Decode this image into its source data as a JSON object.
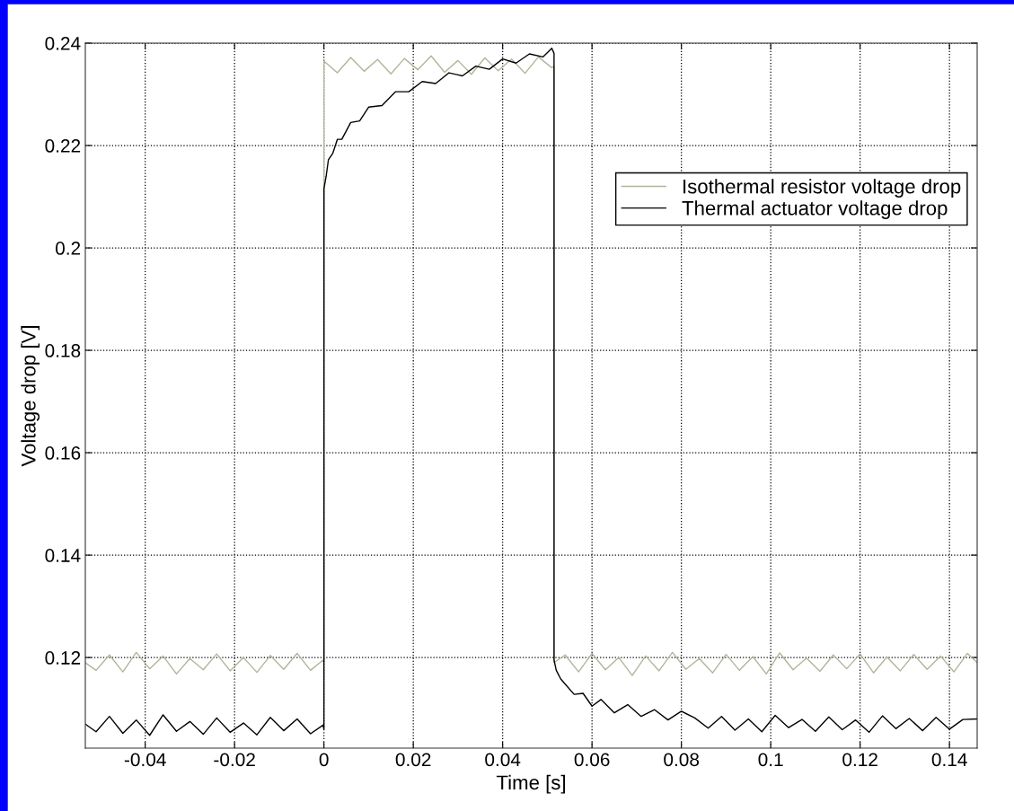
{
  "chart_data": {
    "type": "line",
    "xlabel": "Time [s]",
    "ylabel": "Voltage drop [V]",
    "xlim": [
      -0.0534,
      0.1462
    ],
    "ylim": [
      0.1023,
      0.24
    ],
    "xticks": [
      -0.04,
      -0.02,
      0,
      0.02,
      0.04,
      0.06,
      0.08,
      0.1,
      0.12,
      0.14
    ],
    "yticks": [
      0.12,
      0.14,
      0.16,
      0.18,
      0.2,
      0.22,
      0.24
    ],
    "grid": true,
    "legend": "top right",
    "line_style": "solid",
    "marker": "none",
    "series": [
      {
        "name": "Isothermal resistor voltage drop",
        "color": "#b1b59a",
        "x": [
          -0.0534,
          -0.051,
          -0.048,
          -0.045,
          -0.042,
          -0.039,
          -0.036,
          -0.033,
          -0.03,
          -0.027,
          -0.024,
          -0.021,
          -0.018,
          -0.015,
          -0.012,
          -0.009,
          -0.006,
          -0.003,
          -0.0002,
          0,
          0,
          0.003,
          0.006,
          0.009,
          0.012,
          0.015,
          0.018,
          0.021,
          0.024,
          0.027,
          0.03,
          0.033,
          0.036,
          0.039,
          0.042,
          0.045,
          0.048,
          0.051,
          0.0515,
          0.0515,
          0.054,
          0.057,
          0.06,
          0.063,
          0.066,
          0.069,
          0.072,
          0.075,
          0.078,
          0.081,
          0.084,
          0.087,
          0.09,
          0.093,
          0.096,
          0.099,
          0.102,
          0.105,
          0.108,
          0.111,
          0.114,
          0.117,
          0.12,
          0.123,
          0.126,
          0.129,
          0.132,
          0.135,
          0.138,
          0.141,
          0.144,
          0.1462
        ],
        "values": [
          0.119,
          0.1175,
          0.1205,
          0.1172,
          0.121,
          0.1178,
          0.1203,
          0.1168,
          0.1198,
          0.1176,
          0.1207,
          0.1174,
          0.12,
          0.1171,
          0.1204,
          0.1177,
          0.1208,
          0.1175,
          0.1195,
          0.119,
          0.2365,
          0.2342,
          0.2372,
          0.2345,
          0.2368,
          0.234,
          0.237,
          0.2348,
          0.2375,
          0.2343,
          0.2366,
          0.2339,
          0.2371,
          0.2346,
          0.2369,
          0.2341,
          0.2373,
          0.2352,
          0.2355,
          0.119,
          0.1205,
          0.1172,
          0.1208,
          0.1176,
          0.12,
          0.1165,
          0.1203,
          0.1174,
          0.121,
          0.1177,
          0.1198,
          0.117,
          0.1206,
          0.1175,
          0.1202,
          0.1168,
          0.1209,
          0.1176,
          0.1199,
          0.1173,
          0.1205,
          0.1178,
          0.1207,
          0.117,
          0.1201,
          0.1174,
          0.1206,
          0.1177,
          0.1203,
          0.1172,
          0.1208,
          0.119
        ]
      },
      {
        "name": "Thermal actuator voltage drop",
        "color": "#000000",
        "x": [
          -0.0534,
          -0.051,
          -0.048,
          -0.045,
          -0.042,
          -0.039,
          -0.036,
          -0.033,
          -0.03,
          -0.027,
          -0.024,
          -0.021,
          -0.018,
          -0.015,
          -0.012,
          -0.009,
          -0.006,
          -0.003,
          -0.0002,
          0,
          0,
          0.0005,
          0.001,
          0.002,
          0.003,
          0.004,
          0.006,
          0.008,
          0.01,
          0.013,
          0.016,
          0.019,
          0.022,
          0.025,
          0.028,
          0.031,
          0.034,
          0.037,
          0.04,
          0.043,
          0.046,
          0.049,
          0.051,
          0.0515,
          0.0515,
          0.052,
          0.053,
          0.054,
          0.056,
          0.058,
          0.06,
          0.062,
          0.065,
          0.068,
          0.071,
          0.074,
          0.077,
          0.08,
          0.083,
          0.086,
          0.089,
          0.092,
          0.095,
          0.098,
          0.101,
          0.104,
          0.107,
          0.11,
          0.113,
          0.116,
          0.119,
          0.122,
          0.125,
          0.128,
          0.131,
          0.134,
          0.137,
          0.14,
          0.143,
          0.1462
        ],
        "values": [
          0.107,
          0.1055,
          0.1085,
          0.1052,
          0.1078,
          0.1048,
          0.1088,
          0.1056,
          0.1075,
          0.105,
          0.1082,
          0.1054,
          0.1072,
          0.1049,
          0.1083,
          0.1057,
          0.108,
          0.1051,
          0.1068,
          0.106,
          0.2115,
          0.214,
          0.2172,
          0.2185,
          0.2212,
          0.2212,
          0.2245,
          0.2248,
          0.2275,
          0.2278,
          0.2305,
          0.2305,
          0.2325,
          0.2321,
          0.2342,
          0.2336,
          0.2355,
          0.2349,
          0.2369,
          0.2361,
          0.2379,
          0.2373,
          0.239,
          0.238,
          0.1195,
          0.1175,
          0.1158,
          0.1148,
          0.1128,
          0.113,
          0.1105,
          0.1118,
          0.1092,
          0.1108,
          0.1085,
          0.1098,
          0.1078,
          0.1095,
          0.1082,
          0.1062,
          0.1085,
          0.1058,
          0.108,
          0.1055,
          0.1087,
          0.1063,
          0.1079,
          0.1056,
          0.1084,
          0.1059,
          0.1078,
          0.1054,
          0.1086,
          0.1061,
          0.1081,
          0.1057,
          0.1083,
          0.106,
          0.1079,
          0.108
        ]
      }
    ]
  }
}
